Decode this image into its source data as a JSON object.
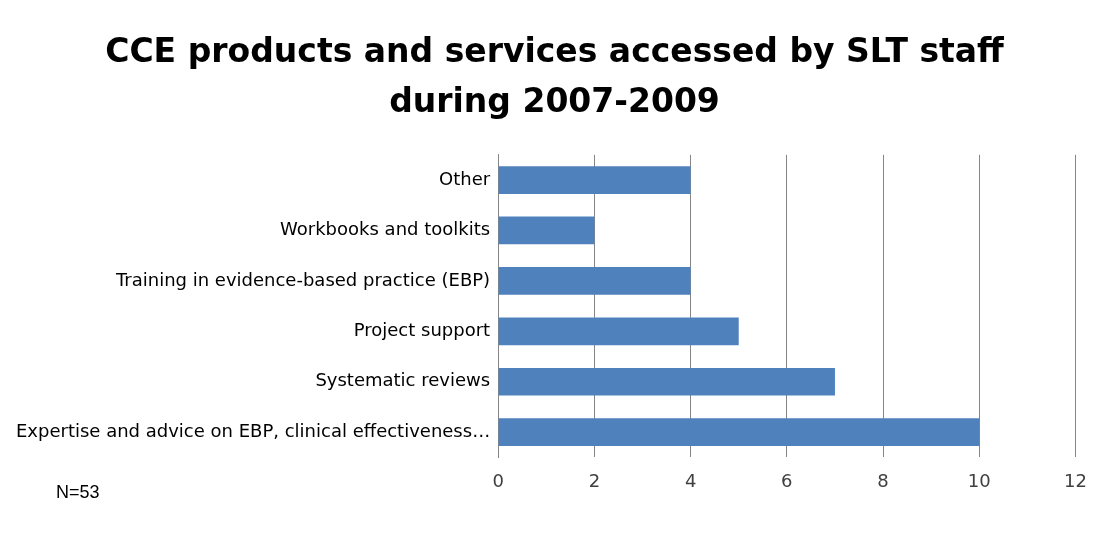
{
  "chart_data": {
    "type": "bar",
    "orientation": "horizontal",
    "title": "CCE products and services accessed by SLT staff during 2007-2009",
    "categories": [
      "Other",
      "Workbooks and toolkits",
      "Training in evidence-based practice (EBP)",
      "Project support",
      "Systematic reviews",
      "Expertise and advice on EBP, clinical effectiveness…"
    ],
    "values": [
      4,
      2,
      4,
      5,
      7,
      10
    ],
    "color": "#4f81bd",
    "xlim": [
      0,
      12
    ],
    "xticks": [
      0,
      2,
      4,
      6,
      8,
      10,
      12
    ],
    "grid": "x",
    "legend": false,
    "annotations": [
      "N=53"
    ]
  }
}
